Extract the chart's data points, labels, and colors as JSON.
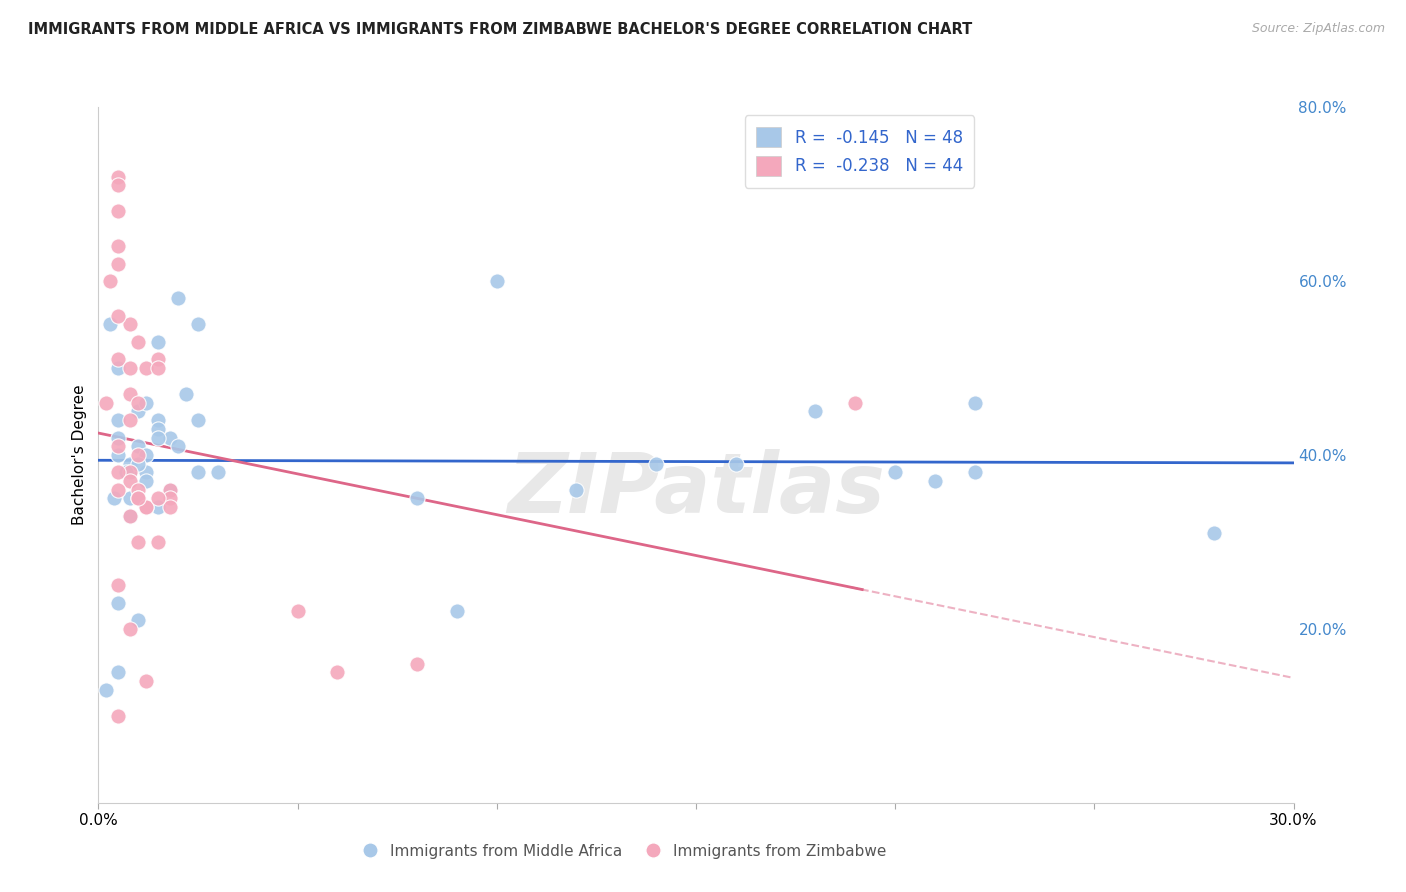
{
  "title": "IMMIGRANTS FROM MIDDLE AFRICA VS IMMIGRANTS FROM ZIMBABWE BACHELOR'S DEGREE CORRELATION CHART",
  "source": "Source: ZipAtlas.com",
  "ylabel": "Bachelor's Degree",
  "xlim": [
    0.0,
    0.3
  ],
  "ylim": [
    0.0,
    0.8
  ],
  "blue_scatter_color": "#a8c8e8",
  "pink_scatter_color": "#f4a8bc",
  "blue_line_color": "#3366cc",
  "pink_line_color": "#dd6688",
  "right_axis_color": "#4488cc",
  "grid_color": "#cccccc",
  "background_color": "#ffffff",
  "blue_R": "-0.145",
  "blue_N": "48",
  "pink_R": "-0.238",
  "pink_N": "44",
  "legend_label1": "Immigrants from Middle Africa",
  "legend_label2": "Immigrants from Zimbabwe",
  "blue_scatter_x": [
    0.01,
    0.005,
    0.02,
    0.015,
    0.025,
    0.005,
    0.01,
    0.008,
    0.012,
    0.018,
    0.022,
    0.008,
    0.015,
    0.012,
    0.018,
    0.025,
    0.008,
    0.015,
    0.012,
    0.005,
    0.008,
    0.01,
    0.015,
    0.012,
    0.02,
    0.025,
    0.005,
    0.01,
    0.015,
    0.12,
    0.08,
    0.14,
    0.16,
    0.2,
    0.21,
    0.005,
    0.18,
    0.22,
    0.1,
    0.03,
    0.09,
    0.22,
    0.003,
    0.005,
    0.007,
    0.002,
    0.004,
    0.28
  ],
  "blue_scatter_y": [
    0.45,
    0.42,
    0.58,
    0.53,
    0.55,
    0.44,
    0.41,
    0.39,
    0.38,
    0.42,
    0.47,
    0.35,
    0.44,
    0.4,
    0.36,
    0.44,
    0.33,
    0.43,
    0.46,
    0.4,
    0.38,
    0.39,
    0.42,
    0.37,
    0.41,
    0.38,
    0.23,
    0.21,
    0.34,
    0.36,
    0.35,
    0.39,
    0.39,
    0.38,
    0.37,
    0.15,
    0.45,
    0.38,
    0.6,
    0.38,
    0.22,
    0.46,
    0.55,
    0.5,
    0.38,
    0.13,
    0.35,
    0.31
  ],
  "pink_scatter_x": [
    0.005,
    0.005,
    0.005,
    0.005,
    0.008,
    0.01,
    0.005,
    0.008,
    0.008,
    0.01,
    0.012,
    0.008,
    0.005,
    0.01,
    0.008,
    0.005,
    0.008,
    0.005,
    0.01,
    0.01,
    0.012,
    0.015,
    0.015,
    0.018,
    0.018,
    0.018,
    0.01,
    0.008,
    0.012,
    0.015,
    0.005,
    0.012,
    0.008,
    0.005,
    0.01,
    0.015,
    0.05,
    0.08,
    0.06,
    0.19,
    0.005,
    0.002,
    0.005,
    0.003
  ],
  "pink_scatter_y": [
    0.72,
    0.71,
    0.68,
    0.64,
    0.55,
    0.53,
    0.51,
    0.5,
    0.47,
    0.46,
    0.5,
    0.44,
    0.41,
    0.4,
    0.38,
    0.38,
    0.37,
    0.36,
    0.36,
    0.35,
    0.34,
    0.51,
    0.5,
    0.36,
    0.35,
    0.34,
    0.3,
    0.2,
    0.14,
    0.3,
    0.25,
    0.34,
    0.33,
    0.1,
    0.35,
    0.35,
    0.22,
    0.16,
    0.15,
    0.46,
    0.56,
    0.46,
    0.62,
    0.6
  ]
}
